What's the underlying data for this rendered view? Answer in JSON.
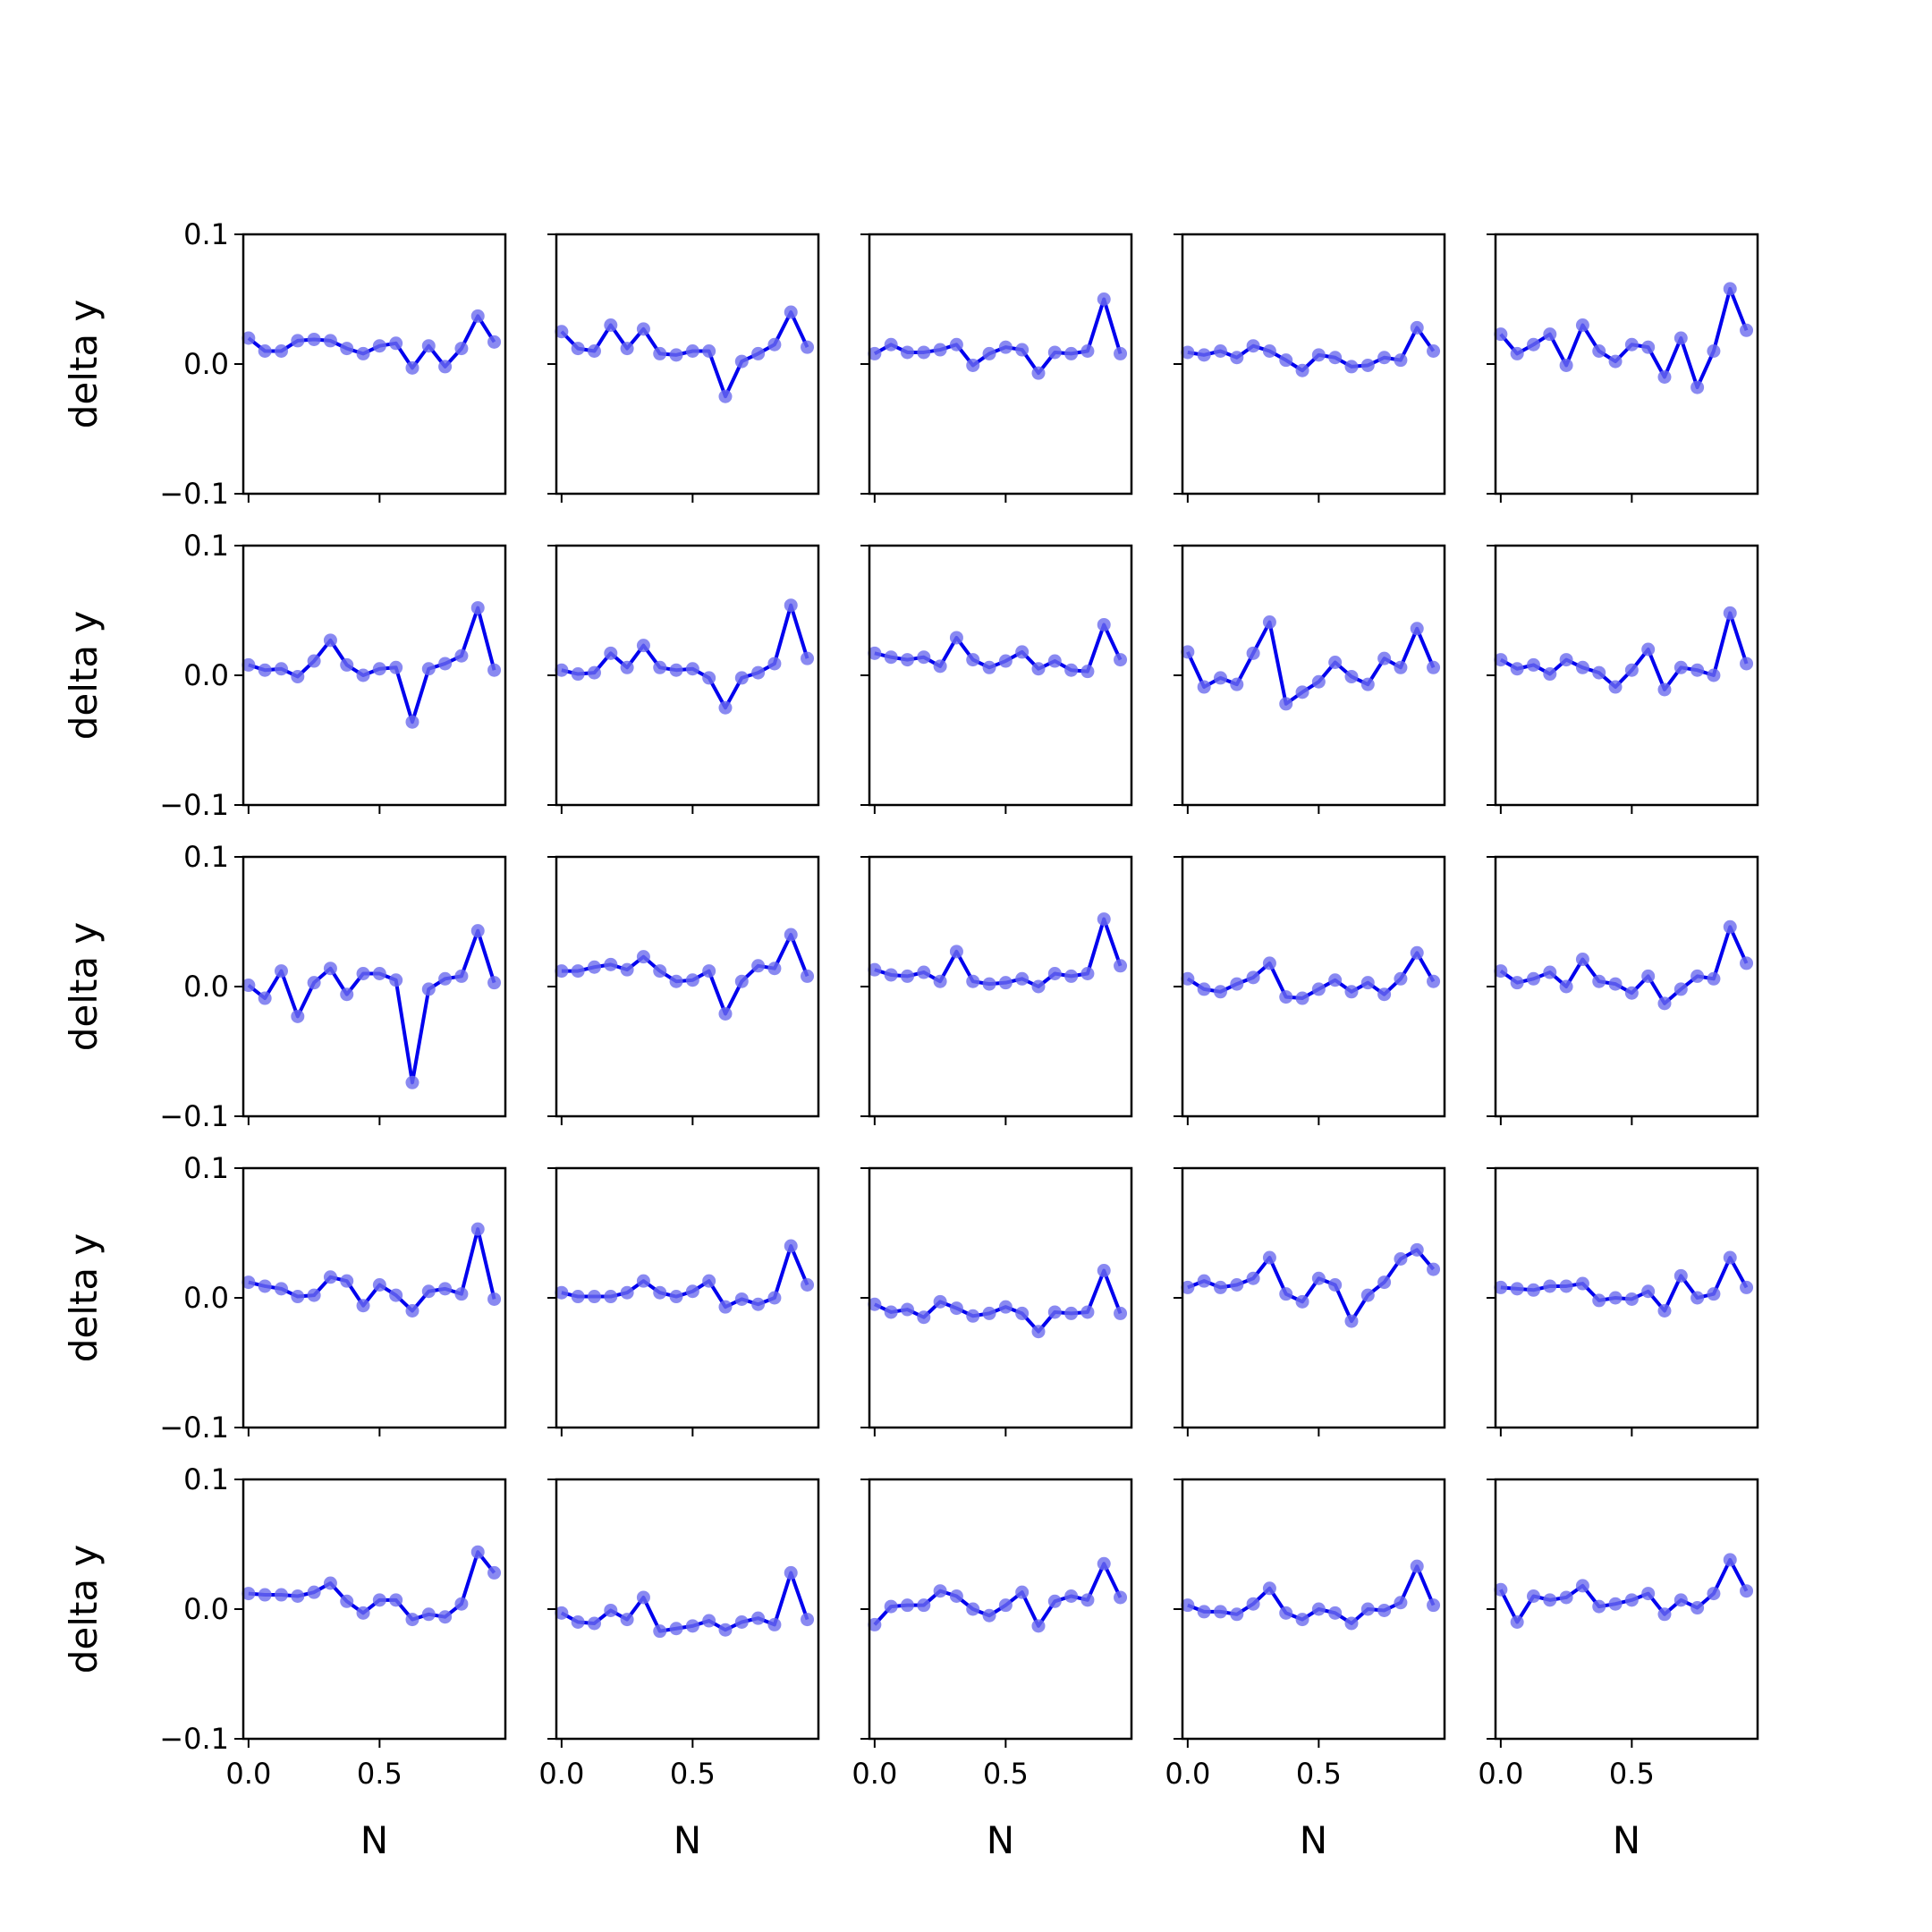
{
  "chart_data": {
    "type": "line",
    "layout": {
      "rows": 5,
      "cols": 5
    },
    "xlabel": "N",
    "ylabel": "delta y",
    "xlim": [
      -0.02,
      0.98
    ],
    "ylim": [
      -0.1,
      0.1
    ],
    "xticks": [
      0.0,
      0.5
    ],
    "xtick_labels": [
      "0.0",
      "0.5"
    ],
    "yticks": [
      -0.1,
      0.0,
      0.1
    ],
    "ytick_labels": [
      "−0.1",
      "0.0",
      "0.1"
    ],
    "x": [
      0.0,
      0.0625,
      0.125,
      0.1875,
      0.25,
      0.3125,
      0.375,
      0.4375,
      0.5,
      0.5625,
      0.625,
      0.6875,
      0.75,
      0.8125,
      0.875,
      0.9375
    ],
    "line_color": "#0000ee",
    "marker_color": "#6b6bee",
    "panels": [
      {
        "values": [
          0.02,
          0.01,
          0.01,
          0.018,
          0.019,
          0.018,
          0.012,
          0.008,
          0.014,
          0.016,
          -0.003,
          0.014,
          -0.002,
          0.012,
          0.037,
          0.017
        ]
      },
      {
        "values": [
          0.025,
          0.012,
          0.01,
          0.03,
          0.012,
          0.027,
          0.008,
          0.007,
          0.01,
          0.01,
          -0.025,
          0.002,
          0.008,
          0.015,
          0.04,
          0.013
        ]
      },
      {
        "values": [
          0.008,
          0.015,
          0.009,
          0.009,
          0.011,
          0.015,
          -0.001,
          0.008,
          0.013,
          0.011,
          -0.007,
          0.009,
          0.008,
          0.01,
          0.05,
          0.008
        ]
      },
      {
        "values": [
          0.009,
          0.007,
          0.01,
          0.005,
          0.014,
          0.01,
          0.003,
          -0.005,
          0.007,
          0.005,
          -0.002,
          -0.001,
          0.005,
          0.003,
          0.028,
          0.01
        ]
      },
      {
        "values": [
          0.023,
          0.008,
          0.015,
          0.023,
          -0.001,
          0.03,
          0.01,
          0.002,
          0.015,
          0.013,
          -0.01,
          0.02,
          -0.018,
          0.01,
          0.058,
          0.026
        ]
      },
      {
        "values": [
          0.008,
          0.004,
          0.005,
          -0.001,
          0.011,
          0.027,
          0.008,
          0.0,
          0.005,
          0.006,
          -0.036,
          0.005,
          0.009,
          0.015,
          0.052,
          0.004
        ]
      },
      {
        "values": [
          0.004,
          0.001,
          0.002,
          0.017,
          0.006,
          0.023,
          0.006,
          0.004,
          0.005,
          -0.002,
          -0.025,
          -0.002,
          0.002,
          0.009,
          0.054,
          0.013
        ]
      },
      {
        "values": [
          0.017,
          0.014,
          0.012,
          0.014,
          0.007,
          0.029,
          0.012,
          0.006,
          0.011,
          0.018,
          0.005,
          0.011,
          0.004,
          0.003,
          0.039,
          0.012
        ]
      },
      {
        "values": [
          0.018,
          -0.009,
          -0.002,
          -0.007,
          0.017,
          0.041,
          -0.022,
          -0.013,
          -0.005,
          0.01,
          -0.001,
          -0.007,
          0.013,
          0.006,
          0.036,
          0.006
        ]
      },
      {
        "values": [
          0.012,
          0.005,
          0.008,
          0.001,
          0.012,
          0.006,
          0.002,
          -0.009,
          0.004,
          0.02,
          -0.011,
          0.006,
          0.004,
          0.0,
          0.048,
          0.009
        ]
      },
      {
        "values": [
          0.001,
          -0.009,
          0.012,
          -0.023,
          0.003,
          0.014,
          -0.006,
          0.01,
          0.01,
          0.005,
          -0.074,
          -0.002,
          0.006,
          0.008,
          0.043,
          0.003
        ]
      },
      {
        "values": [
          0.012,
          0.012,
          0.015,
          0.017,
          0.013,
          0.023,
          0.012,
          0.004,
          0.005,
          0.012,
          -0.021,
          0.004,
          0.016,
          0.014,
          0.04,
          0.008
        ]
      },
      {
        "values": [
          0.013,
          0.009,
          0.008,
          0.011,
          0.004,
          0.027,
          0.004,
          0.002,
          0.003,
          0.006,
          0.0,
          0.01,
          0.008,
          0.01,
          0.052,
          0.016
        ]
      },
      {
        "values": [
          0.006,
          -0.002,
          -0.004,
          0.002,
          0.007,
          0.018,
          -0.008,
          -0.009,
          -0.002,
          0.005,
          -0.004,
          0.003,
          -0.006,
          0.006,
          0.026,
          0.004
        ]
      },
      {
        "values": [
          0.012,
          0.003,
          0.006,
          0.011,
          0.0,
          0.021,
          0.004,
          0.002,
          -0.005,
          0.008,
          -0.013,
          -0.002,
          0.008,
          0.006,
          0.046,
          0.018
        ]
      },
      {
        "values": [
          0.012,
          0.009,
          0.007,
          0.001,
          0.002,
          0.016,
          0.013,
          -0.006,
          0.01,
          0.002,
          -0.01,
          0.005,
          0.007,
          0.003,
          0.053,
          -0.001
        ]
      },
      {
        "values": [
          0.004,
          0.001,
          0.001,
          0.001,
          0.004,
          0.013,
          0.004,
          0.001,
          0.005,
          0.013,
          -0.007,
          -0.001,
          -0.005,
          0.0,
          0.04,
          0.01
        ]
      },
      {
        "values": [
          -0.005,
          -0.011,
          -0.009,
          -0.015,
          -0.003,
          -0.008,
          -0.014,
          -0.012,
          -0.007,
          -0.012,
          -0.026,
          -0.011,
          -0.012,
          -0.011,
          0.021,
          -0.012
        ]
      },
      {
        "values": [
          0.008,
          0.013,
          0.008,
          0.01,
          0.015,
          0.031,
          0.003,
          -0.003,
          0.015,
          0.01,
          -0.018,
          0.002,
          0.012,
          0.03,
          0.037,
          0.022
        ]
      },
      {
        "values": [
          0.008,
          0.007,
          0.006,
          0.009,
          0.009,
          0.011,
          -0.002,
          0.0,
          -0.001,
          0.005,
          -0.01,
          0.017,
          0.0,
          0.003,
          0.031,
          0.008
        ]
      },
      {
        "values": [
          0.012,
          0.011,
          0.011,
          0.01,
          0.013,
          0.02,
          0.006,
          -0.003,
          0.007,
          0.007,
          -0.008,
          -0.004,
          -0.006,
          0.004,
          0.044,
          0.028
        ]
      },
      {
        "values": [
          -0.003,
          -0.01,
          -0.011,
          -0.001,
          -0.008,
          0.009,
          -0.017,
          -0.015,
          -0.013,
          -0.009,
          -0.016,
          -0.01,
          -0.007,
          -0.012,
          0.028,
          -0.008
        ]
      },
      {
        "values": [
          -0.012,
          0.002,
          0.003,
          0.003,
          0.014,
          0.01,
          0.0,
          -0.005,
          0.003,
          0.013,
          -0.013,
          0.006,
          0.01,
          0.007,
          0.035,
          0.009
        ]
      },
      {
        "values": [
          0.003,
          -0.002,
          -0.002,
          -0.004,
          0.004,
          0.016,
          -0.003,
          -0.008,
          0.0,
          -0.003,
          -0.011,
          0.0,
          -0.001,
          0.005,
          0.033,
          0.003
        ]
      },
      {
        "values": [
          0.015,
          -0.01,
          0.01,
          0.007,
          0.009,
          0.018,
          0.002,
          0.004,
          0.007,
          0.012,
          -0.004,
          0.007,
          0.001,
          0.012,
          0.038,
          0.014
        ]
      }
    ]
  }
}
